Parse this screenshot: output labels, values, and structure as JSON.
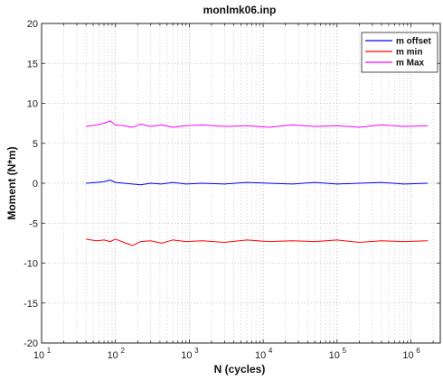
{
  "chart_data": {
    "type": "line",
    "title": "monlmk06.inp",
    "xlabel": "N (cycles)",
    "ylabel": "Moment (N*m)",
    "xscale": "log",
    "xlim": [
      10,
      2500000
    ],
    "ylim": [
      -20,
      20
    ],
    "grid": "on (dotted, vertical minor log gridlines)",
    "legend_position": "top-right",
    "xticks": [
      {
        "value": 10,
        "base": "10",
        "exp": "1"
      },
      {
        "value": 100,
        "base": "10",
        "exp": "2"
      },
      {
        "value": 1000,
        "base": "10",
        "exp": "3"
      },
      {
        "value": 10000,
        "base": "10",
        "exp": "4"
      },
      {
        "value": 100000,
        "base": "10",
        "exp": "5"
      },
      {
        "value": 1000000,
        "base": "10",
        "exp": "6"
      }
    ],
    "yticks": [
      "-20",
      "-15",
      "-10",
      "-5",
      "0",
      "5",
      "10",
      "15",
      "20"
    ],
    "series": [
      {
        "name": "m offset",
        "color": "#0000ff",
        "x": [
          40,
          55,
          70,
          85,
          100,
          130,
          170,
          220,
          300,
          420,
          600,
          900,
          1500,
          3000,
          6000,
          12000,
          25000,
          50000,
          100000,
          200000,
          400000,
          800000,
          1700000
        ],
        "y": [
          0.0,
          0.1,
          0.2,
          0.4,
          0.1,
          0.0,
          -0.1,
          -0.2,
          0.0,
          -0.1,
          0.1,
          -0.1,
          0.0,
          -0.1,
          0.1,
          0.0,
          -0.1,
          0.1,
          -0.1,
          0.0,
          0.1,
          -0.1,
          0.0
        ]
      },
      {
        "name": "m min",
        "color": "#ff0000",
        "x": [
          40,
          55,
          70,
          85,
          100,
          130,
          170,
          220,
          300,
          420,
          600,
          900,
          1500,
          3000,
          6000,
          12000,
          25000,
          50000,
          100000,
          200000,
          400000,
          800000,
          1700000
        ],
        "y": [
          -7.0,
          -7.2,
          -7.1,
          -7.3,
          -7.0,
          -7.4,
          -7.8,
          -7.3,
          -7.2,
          -7.5,
          -7.1,
          -7.3,
          -7.2,
          -7.4,
          -7.1,
          -7.3,
          -7.2,
          -7.3,
          -7.1,
          -7.4,
          -7.2,
          -7.3,
          -7.2
        ]
      },
      {
        "name": "m Max",
        "color": "#ff00ff",
        "x": [
          40,
          55,
          70,
          85,
          100,
          130,
          170,
          220,
          300,
          420,
          600,
          900,
          1500,
          3000,
          6000,
          12000,
          25000,
          50000,
          100000,
          200000,
          400000,
          800000,
          1700000
        ],
        "y": [
          7.1,
          7.3,
          7.5,
          7.8,
          7.3,
          7.2,
          7.0,
          7.4,
          7.1,
          7.3,
          7.0,
          7.2,
          7.3,
          7.1,
          7.2,
          7.0,
          7.3,
          7.1,
          7.2,
          7.0,
          7.3,
          7.1,
          7.2
        ]
      }
    ]
  }
}
